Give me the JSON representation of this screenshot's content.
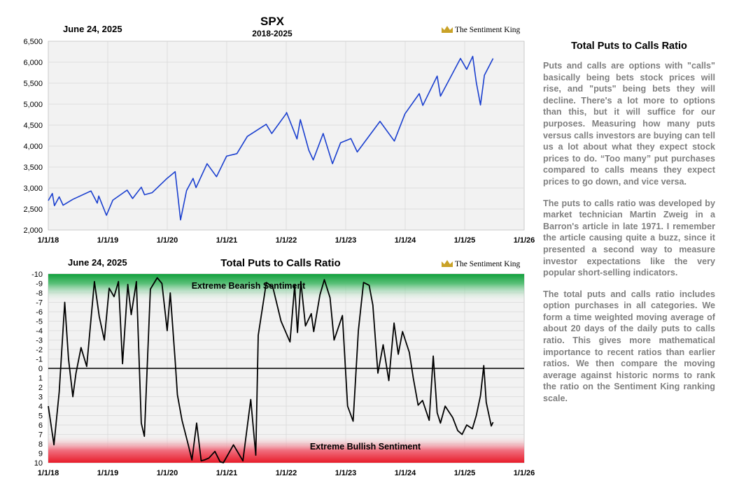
{
  "spx_chart": {
    "date": "June 24, 2025",
    "title": "SPX",
    "subtitle": "2018-2025",
    "brand": "The Sentiment King",
    "y_ticks": [
      "2,000",
      "2,500",
      "3,000",
      "3,500",
      "4,000",
      "4,500",
      "5,000",
      "5,500",
      "6,000",
      "6,500"
    ],
    "x_ticks": [
      "1/1/18",
      "1/1/19",
      "1/1/20",
      "1/1/21",
      "1/1/22",
      "1/1/23",
      "1/1/24",
      "1/1/25",
      "1/1/26"
    ]
  },
  "ratio_chart": {
    "date": "June 24, 2025",
    "title": "Total Puts to Calls Ratio",
    "brand": "The Sentiment King",
    "bearish_label": "Extreme Bearish Sentiment",
    "bullish_label": "Extreme Bullish Sentiment",
    "y_ticks": [
      "-10",
      "-9",
      "-8",
      "-7",
      "-6",
      "-5",
      "-4",
      "-3",
      "-2",
      "-1",
      "0",
      "1",
      "2",
      "3",
      "4",
      "5",
      "6",
      "7",
      "8",
      "9",
      "10"
    ],
    "x_ticks": [
      "1/1/18",
      "1/1/19",
      "1/1/20",
      "1/1/21",
      "1/1/22",
      "1/1/23",
      "1/1/24",
      "1/1/25",
      "1/1/26"
    ]
  },
  "sidebar": {
    "title": "Total Puts to Calls Ratio",
    "paragraphs": [
      "Puts and calls are options with \"calls\" basically being bets stock prices will rise, and \"puts\" being bets they will decline. There's a lot more to options than this, but it will suffice for our purposes. Measuring how many puts versus calls investors are buying can tell us a lot about what they expect stock prices to do. “Too many” put purchases compared to calls means they expect prices to go down, and vice versa.",
      "The puts to calls ratio was developed by market technician Martin Zweig in a Barron's article in late 1971. I remember the article causing quite a buzz, since it presented a second way to measure investor expectations like the very popular short-selling indicators.",
      "The total puts and calls ratio includes option purchases in all categories. We form a time weighted moving average of about 20 days of the daily puts to calls ratio. This gives more mathematical importance to recent ratios than earlier ratios. We then compare the moving average against historic norms to rank the ratio on the Sentiment King ranking scale."
    ]
  },
  "colors": {
    "spx_line": "#1a3fcf",
    "ratio_line": "#000000",
    "bearish_zone": "#12a03c",
    "bullish_zone": "#e81c2a",
    "plot_bg": "#f2f2f2",
    "brand_crown": "#c9a227"
  },
  "chart_data": [
    {
      "type": "line",
      "title": "SPX",
      "subtitle": "2018-2025",
      "x_range": [
        "2018-01-01",
        "2026-01-01"
      ],
      "ylim": [
        2000,
        6500
      ],
      "grid": true,
      "series": [
        {
          "x": [
            "2018-01-01",
            "2018-01-26",
            "2018-02-08",
            "2018-03-09",
            "2018-04-02",
            "2018-06-01",
            "2018-09-20",
            "2018-10-29",
            "2018-11-07",
            "2018-12-24",
            "2019-02-01",
            "2019-04-30",
            "2019-06-03",
            "2019-07-26",
            "2019-08-15",
            "2019-10-01",
            "2019-12-31",
            "2020-02-19",
            "2020-03-23",
            "2020-04-29",
            "2020-06-08",
            "2020-06-26",
            "2020-09-02",
            "2020-10-30",
            "2020-12-31",
            "2021-03-04",
            "2021-05-07",
            "2021-08-31",
            "2021-10-04",
            "2021-12-31",
            "2022-01-03",
            "2022-03-08",
            "2022-03-29",
            "2022-05-20",
            "2022-06-16",
            "2022-08-16",
            "2022-10-12",
            "2022-12-01",
            "2023-02-02",
            "2023-03-13",
            "2023-07-31",
            "2023-10-27",
            "2023-12-31",
            "2024-03-28",
            "2024-04-19",
            "2024-07-16",
            "2024-08-05",
            "2024-12-06",
            "2025-01-13",
            "2025-02-19",
            "2025-03-13",
            "2025-04-08",
            "2025-05-02",
            "2025-06-24"
          ],
          "values": [
            2700,
            2870,
            2580,
            2790,
            2590,
            2730,
            2930,
            2640,
            2810,
            2350,
            2710,
            2950,
            2750,
            3020,
            2840,
            2890,
            3230,
            3390,
            2240,
            2940,
            3230,
            3010,
            3580,
            3270,
            3760,
            3820,
            4230,
            4520,
            4300,
            4770,
            4800,
            4170,
            4630,
            3900,
            3670,
            4300,
            3580,
            4080,
            4180,
            3860,
            4590,
            4120,
            4770,
            5250,
            4970,
            5670,
            5190,
            6090,
            5830,
            6140,
            5520,
            4980,
            5690,
            6090
          ]
        }
      ]
    },
    {
      "type": "line",
      "title": "Total Puts to Calls Ratio",
      "x_range": [
        "2018-01-01",
        "2026-01-01"
      ],
      "ylim": [
        10,
        -10
      ],
      "grid": true,
      "series": [
        {
          "x": [
            "2018-01-01",
            "2018-02-05",
            "2018-03-09",
            "2018-04-12",
            "2018-05-05",
            "2018-06-01",
            "2018-06-20",
            "2018-07-21",
            "2018-08-25",
            "2018-10-11",
            "2018-11-10",
            "2018-12-11",
            "2019-01-10",
            "2019-02-09",
            "2019-03-08",
            "2019-04-02",
            "2019-05-04",
            "2019-05-25",
            "2019-06-26",
            "2019-07-26",
            "2019-08-14",
            "2019-09-20",
            "2019-11-01",
            "2019-11-30",
            "2020-01-01",
            "2020-01-20",
            "2020-02-20",
            "2020-03-04",
            "2020-04-01",
            "2020-05-05",
            "2020-06-01",
            "2020-06-30",
            "2020-07-28",
            "2020-08-17",
            "2020-09-13",
            "2020-10-20",
            "2020-11-21",
            "2020-12-11",
            "2021-02-11",
            "2021-04-10",
            "2021-05-28",
            "2021-06-28",
            "2021-07-13",
            "2021-09-01",
            "2021-10-11",
            "2021-11-30",
            "2022-01-24",
            "2022-02-22",
            "2022-03-11",
            "2022-04-01",
            "2022-04-29",
            "2022-06-04",
            "2022-06-19",
            "2022-07-27",
            "2022-08-23",
            "2022-09-27",
            "2022-10-22",
            "2022-12-12",
            "2023-01-13",
            "2023-02-16",
            "2023-03-20",
            "2023-04-21",
            "2023-05-25",
            "2023-06-17",
            "2023-07-18",
            "2023-08-19",
            "2023-09-23",
            "2023-10-25",
            "2023-11-20",
            "2023-12-16",
            "2024-01-27",
            "2024-02-20",
            "2024-03-21",
            "2024-04-17",
            "2024-05-28",
            "2024-06-22",
            "2024-07-16",
            "2024-08-05",
            "2024-09-03",
            "2024-10-19",
            "2024-11-19",
            "2024-12-16",
            "2025-01-13",
            "2025-02-17",
            "2025-03-13",
            "2025-04-08",
            "2025-04-28",
            "2025-05-13",
            "2025-06-13",
            "2025-06-24"
          ],
          "values": [
            4.0,
            8.1,
            2.5,
            -7.0,
            -1.0,
            3.0,
            0.5,
            -2.2,
            -0.2,
            -9.2,
            -5.5,
            -3.0,
            -8.5,
            -7.6,
            -9.2,
            -0.5,
            -8.9,
            -5.7,
            -9.2,
            5.8,
            7.2,
            -8.4,
            -9.6,
            -9.0,
            -4.0,
            -8.0,
            -0.6,
            2.8,
            5.5,
            7.8,
            9.7,
            5.8,
            9.8,
            9.7,
            9.5,
            8.8,
            9.9,
            10.0,
            8.1,
            9.8,
            3.3,
            9.2,
            -3.5,
            -9.1,
            -8.6,
            -5.0,
            -2.8,
            -8.8,
            -3.8,
            -9.2,
            -4.5,
            -5.8,
            -3.9,
            -7.8,
            -9.4,
            -7.5,
            -3.0,
            -5.6,
            4.0,
            5.6,
            -4.0,
            -9.1,
            -8.8,
            -6.7,
            0.5,
            -2.5,
            1.3,
            -4.8,
            -1.5,
            -3.9,
            -1.7,
            1.0,
            3.9,
            3.4,
            5.5,
            -1.3,
            4.7,
            5.8,
            4.0,
            5.2,
            6.6,
            7.0,
            6.0,
            6.4,
            5.0,
            2.9,
            -0.3,
            3.6,
            6.1,
            5.7
          ]
        }
      ]
    }
  ]
}
